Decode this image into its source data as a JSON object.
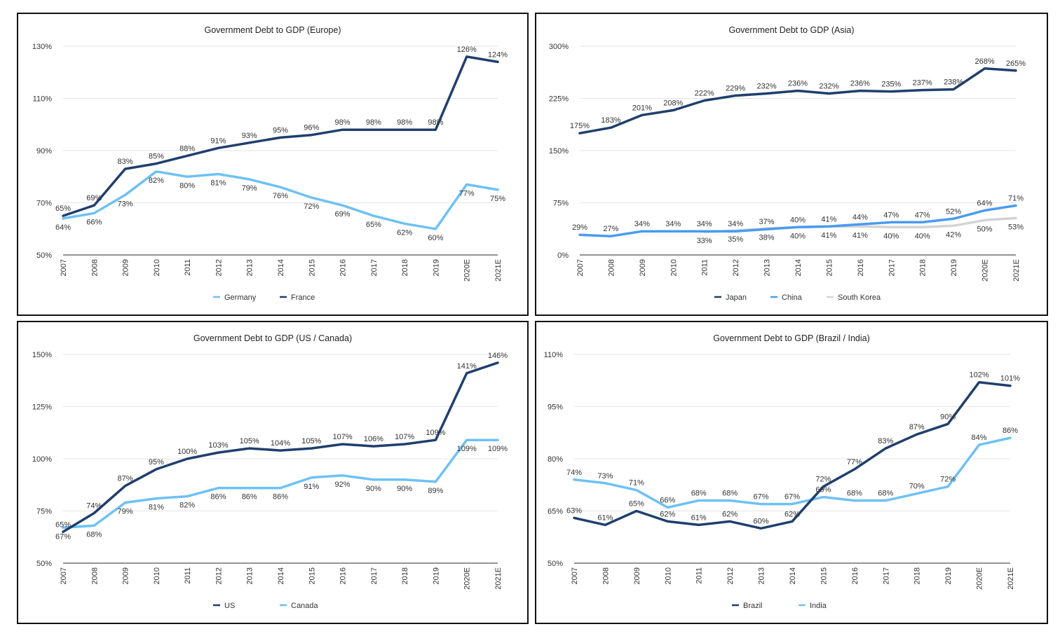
{
  "chart_data": [
    {
      "type": "line",
      "title": "Government Debt to GDP (Europe)",
      "xlabel": "",
      "ylabel": "",
      "categories": [
        "2007",
        "2008",
        "2009",
        "2010",
        "2011",
        "2012",
        "2013",
        "2014",
        "2015",
        "2016",
        "2017",
        "2018",
        "2019",
        "2020E",
        "2021E"
      ],
      "y_ticks": [
        "50%",
        "70%",
        "90%",
        "110%",
        "130%"
      ],
      "ylim": [
        50,
        130
      ],
      "grid": true,
      "legend": "bottom-center",
      "legend_order": [
        "Germany",
        "France"
      ],
      "series": [
        {
          "name": "France",
          "color": "#1f3f6e",
          "label_pos": "above",
          "values": [
            65,
            69,
            83,
            85,
            88,
            91,
            93,
            95,
            96,
            98,
            98,
            98,
            98,
            126,
            124
          ]
        },
        {
          "name": "Germany",
          "color": "#6ec1f5",
          "label_pos": "below",
          "values": [
            64,
            66,
            73,
            82,
            80,
            81,
            79,
            76,
            72,
            69,
            65,
            62,
            60,
            77,
            75
          ]
        }
      ]
    },
    {
      "type": "line",
      "title": "Government Debt to GDP (Asia)",
      "xlabel": "",
      "ylabel": "",
      "categories": [
        "2007",
        "2008",
        "2009",
        "2010",
        "2011",
        "2012",
        "2013",
        "2014",
        "2015",
        "2016",
        "2017",
        "2018",
        "2019",
        "2020E",
        "2021E"
      ],
      "y_ticks": [
        "0%",
        "75%",
        "150%",
        "225%",
        "300%"
      ],
      "ylim": [
        0,
        300
      ],
      "grid": true,
      "legend": "bottom-center",
      "legend_order": [
        "Japan",
        "China",
        "South Korea"
      ],
      "series": [
        {
          "name": "South Korea",
          "color": "#d3d3d3",
          "label_pos": "below",
          "values": [
            null,
            null,
            null,
            null,
            33,
            35,
            38,
            40,
            41,
            41,
            40,
            40,
            42,
            50,
            53
          ]
        },
        {
          "name": "Japan",
          "color": "#1f3f6e",
          "label_pos": "above",
          "values": [
            175,
            183,
            201,
            208,
            222,
            229,
            232,
            236,
            232,
            236,
            235,
            237,
            238,
            268,
            265
          ]
        },
        {
          "name": "China",
          "color": "#4a9bef",
          "label_pos": "above",
          "values": [
            29,
            27,
            34,
            34,
            34,
            34,
            37,
            40,
            41,
            44,
            47,
            47,
            52,
            64,
            71
          ]
        }
      ]
    },
    {
      "type": "line",
      "title": "Government Debt to GDP (US / Canada)",
      "xlabel": "",
      "ylabel": "",
      "categories": [
        "2007",
        "2008",
        "2009",
        "2010",
        "2011",
        "2012",
        "2013",
        "2014",
        "2015",
        "2016",
        "2017",
        "2018",
        "2019",
        "2020E",
        "2021E"
      ],
      "y_ticks": [
        "50%",
        "75%",
        "100%",
        "125%",
        "150%"
      ],
      "ylim": [
        50,
        150
      ],
      "grid": true,
      "legend": "bottom-center",
      "legend_order": [
        "US",
        "Canada"
      ],
      "series": [
        {
          "name": "Canada",
          "color": "#6ec1f5",
          "label_pos": "below",
          "values": [
            67,
            68,
            79,
            81,
            82,
            86,
            86,
            86,
            91,
            92,
            90,
            90,
            89,
            109,
            109
          ]
        },
        {
          "name": "US",
          "color": "#1f3f6e",
          "label_pos": "above",
          "values": [
            65,
            74,
            87,
            95,
            100,
            103,
            105,
            104,
            105,
            107,
            106,
            107,
            109,
            141,
            146
          ]
        }
      ]
    },
    {
      "type": "line",
      "title": "Government Debt to GDP (Brazil / India)",
      "xlabel": "",
      "ylabel": "",
      "categories": [
        "2007",
        "2008",
        "2009",
        "2010",
        "2011",
        "2012",
        "2013",
        "2014",
        "2015",
        "2016",
        "2017",
        "2018",
        "2019",
        "2020E",
        "2021E"
      ],
      "y_ticks": [
        "50%",
        "65%",
        "80%",
        "95%",
        "110%"
      ],
      "ylim": [
        50,
        110
      ],
      "grid": true,
      "legend": "bottom-center",
      "legend_order": [
        "Brazil",
        "India"
      ],
      "series": [
        {
          "name": "India",
          "color": "#6ec1f5",
          "label_pos": "above",
          "values": [
            74,
            73,
            71,
            66,
            68,
            68,
            67,
            67,
            69,
            68,
            68,
            70,
            72,
            84,
            86
          ]
        },
        {
          "name": "Brazil",
          "color": "#1f3f6e",
          "label_pos": "above",
          "values": [
            63,
            61,
            65,
            62,
            61,
            62,
            60,
            62,
            72,
            77,
            83,
            87,
            90,
            102,
            101
          ]
        }
      ]
    }
  ]
}
